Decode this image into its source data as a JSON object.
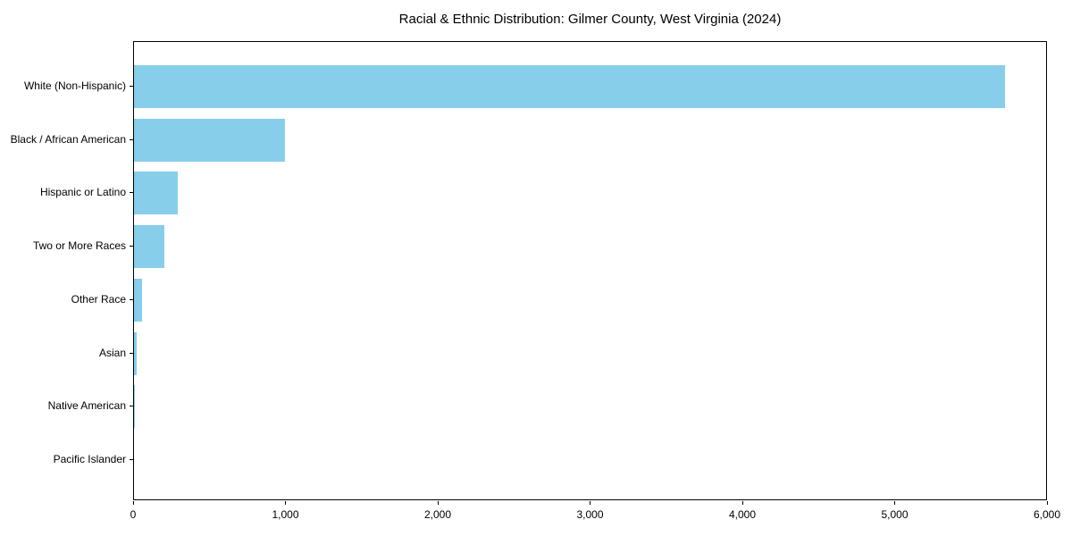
{
  "chart_data": {
    "type": "bar",
    "orientation": "horizontal",
    "title": "Racial & Ethnic Distribution: Gilmer County, West Virginia (2024)",
    "categories": [
      "White (Non-Hispanic)",
      "Black / African American",
      "Hispanic or Latino",
      "Two or More Races",
      "Other Race",
      "Asian",
      "Native American",
      "Pacific Islander"
    ],
    "values": [
      5720,
      990,
      290,
      200,
      50,
      20,
      5,
      0
    ],
    "xlabel": "",
    "ylabel": "",
    "xlim": [
      0,
      6000
    ],
    "xticks": [
      0,
      1000,
      2000,
      3000,
      4000,
      5000,
      6000
    ],
    "xtick_labels": [
      "0",
      "1,000",
      "2,000",
      "3,000",
      "4,000",
      "5,000",
      "6,000"
    ],
    "bar_color": "#87ceeb",
    "axis_color": "#000000",
    "text_color": "#000000",
    "background_color": "#ffffff",
    "grid": false,
    "legend": null
  }
}
